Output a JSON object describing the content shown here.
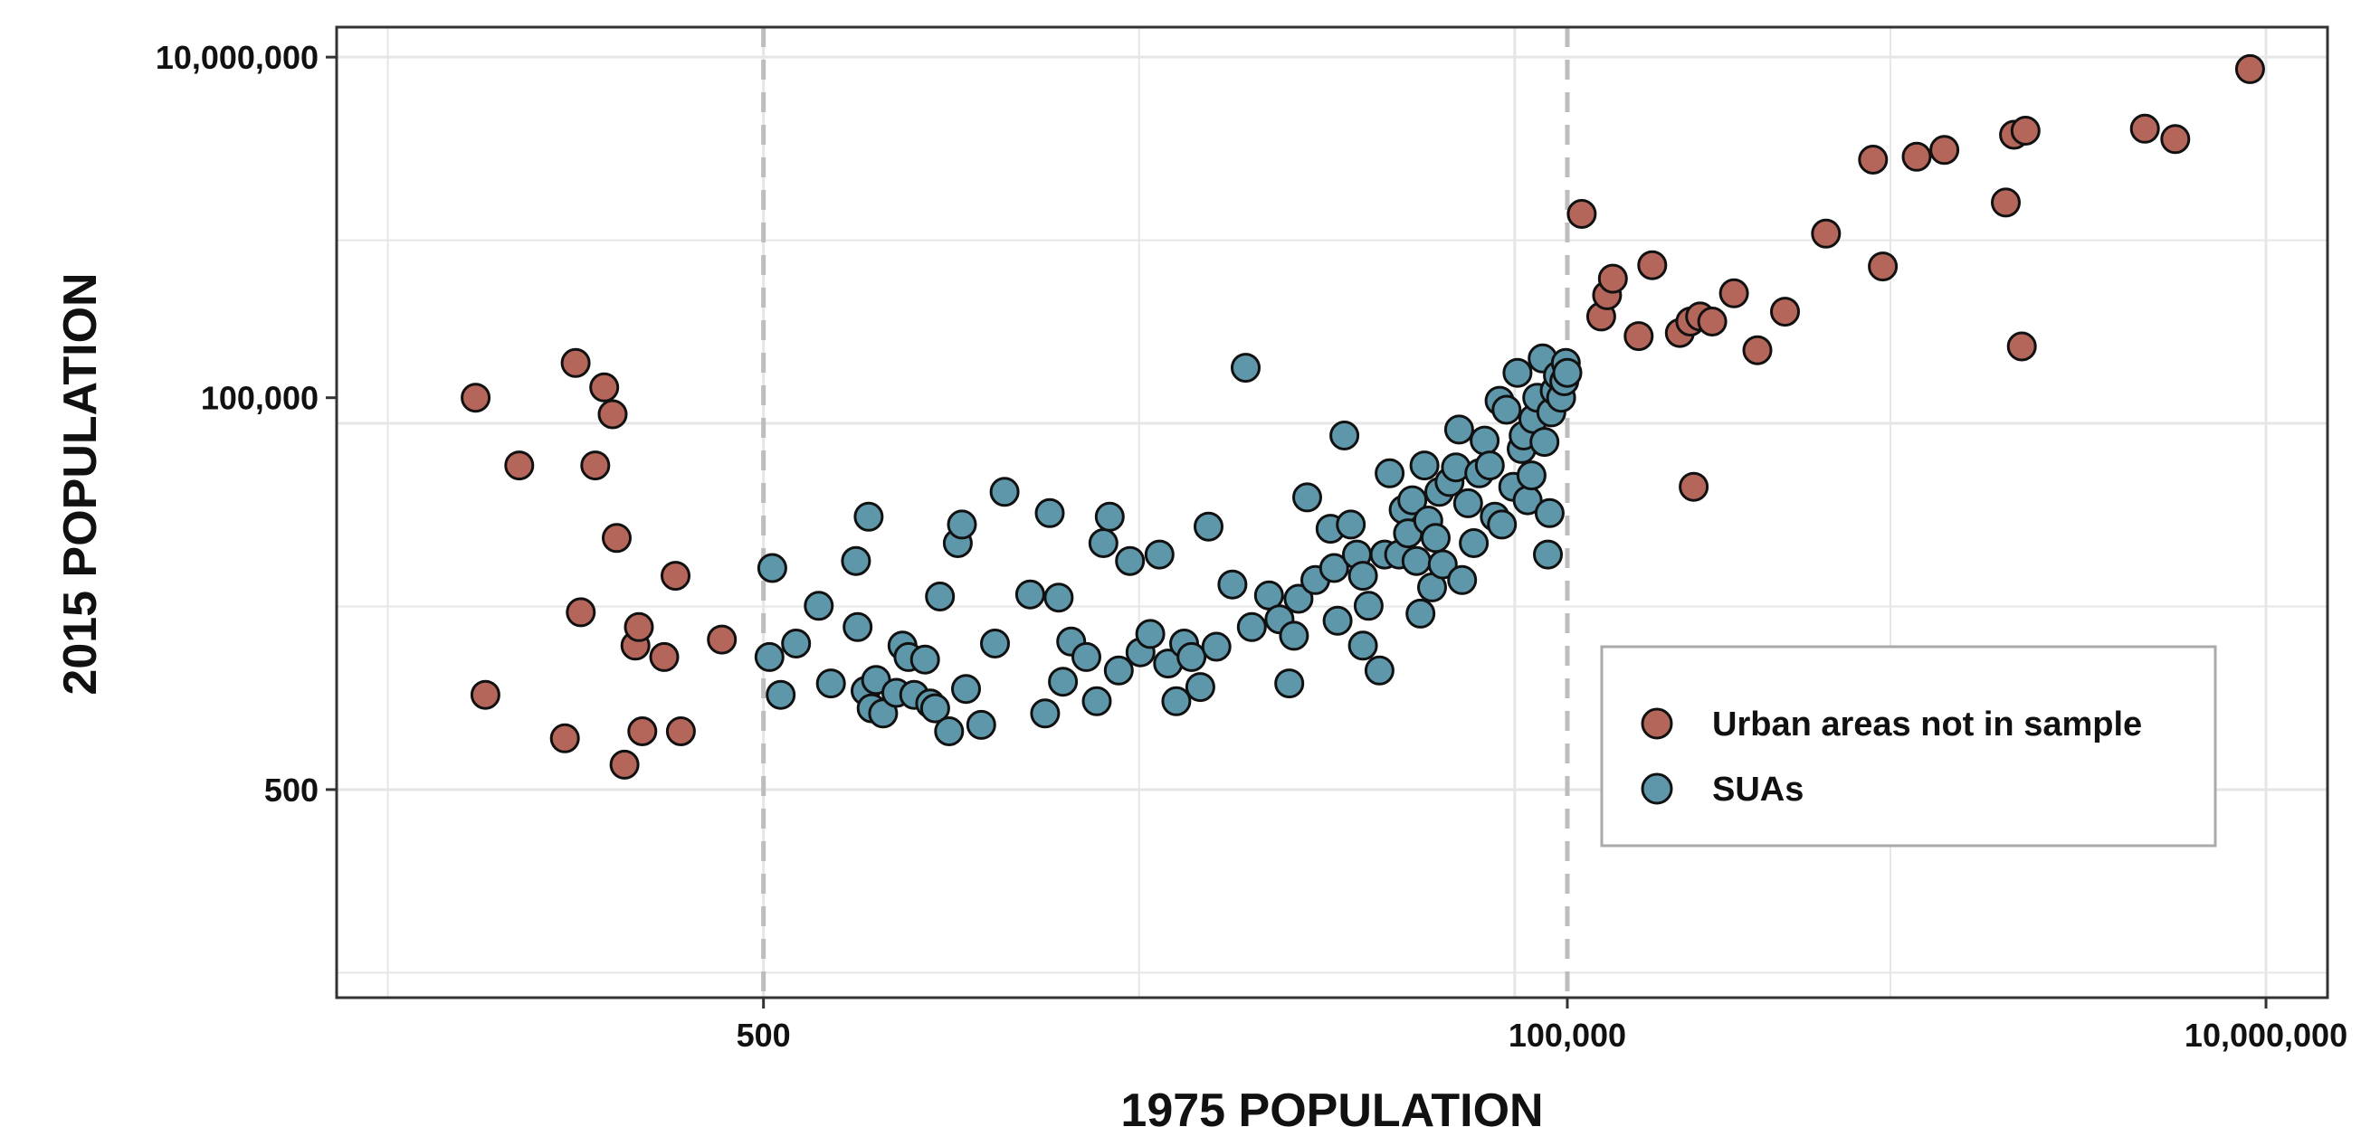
{
  "chart_data": {
    "type": "scatter",
    "title": "",
    "xlabel": "1975 POPULATION",
    "ylabel": "2015 POPULATION",
    "x_scale": "log",
    "y_scale": "log",
    "xlim": [
      30,
      15000000
    ],
    "ylim": [
      30,
      15000000
    ],
    "x_ticks": [
      500,
      100000,
      10000000
    ],
    "x_tick_labels": [
      "500",
      "100,000",
      "10,000,000"
    ],
    "y_ticks": [
      500,
      100000,
      10000000
    ],
    "y_tick_labels": [
      "500",
      "100,000",
      "10,000,000"
    ],
    "x_dashed_reference_lines": [
      500,
      100000
    ],
    "grid": true,
    "legend_position": "bottom-right",
    "colors": {
      "urban": "#b5665a",
      "suas": "#5e97aa"
    },
    "series": [
      {
        "name": "Urban areas not in sample",
        "color": "#b5665a",
        "points": [
          [
            75,
            100000
          ],
          [
            80,
            1800
          ],
          [
            100,
            40000
          ],
          [
            135,
            1000
          ],
          [
            145,
            160000
          ],
          [
            150,
            5500
          ],
          [
            165,
            40000
          ],
          [
            175,
            115000
          ],
          [
            185,
            80000
          ],
          [
            190,
            15000
          ],
          [
            200,
            700
          ],
          [
            215,
            3500
          ],
          [
            220,
            4500
          ],
          [
            225,
            1100
          ],
          [
            260,
            3000
          ],
          [
            280,
            9000
          ],
          [
            290,
            1100
          ],
          [
            380,
            3800
          ],
          [
            110000,
            1200000
          ],
          [
            125000,
            300000
          ],
          [
            130000,
            400000
          ],
          [
            135000,
            500000
          ],
          [
            160000,
            230000
          ],
          [
            175000,
            600000
          ],
          [
            210000,
            240000
          ],
          [
            225000,
            280000
          ],
          [
            230000,
            30000
          ],
          [
            240000,
            300000
          ],
          [
            260000,
            280000
          ],
          [
            300000,
            410000
          ],
          [
            350000,
            190000
          ],
          [
            420000,
            320000
          ],
          [
            550000,
            920000
          ],
          [
            750000,
            2500000
          ],
          [
            800000,
            590000
          ],
          [
            1000000,
            2600000
          ],
          [
            1200000,
            2850000
          ],
          [
            1800000,
            1400000
          ],
          [
            1900000,
            3500000
          ],
          [
            2000000,
            200000
          ],
          [
            2050000,
            3700000
          ],
          [
            4500000,
            3800000
          ],
          [
            5500000,
            3300000
          ],
          [
            9000000,
            8500000
          ]
        ]
      },
      {
        "name": "SUAs",
        "color": "#5e97aa",
        "points": [
          [
            520,
            3000
          ],
          [
            530,
            10000
          ],
          [
            560,
            1800
          ],
          [
            620,
            3600
          ],
          [
            720,
            6000
          ],
          [
            780,
            2100
          ],
          [
            920,
            11000
          ],
          [
            930,
            4500
          ],
          [
            980,
            1900
          ],
          [
            1000,
            20000
          ],
          [
            1020,
            1500
          ],
          [
            1050,
            2200
          ],
          [
            1100,
            1400
          ],
          [
            1200,
            1850
          ],
          [
            1250,
            3500
          ],
          [
            1300,
            3000
          ],
          [
            1350,
            1800
          ],
          [
            1450,
            2900
          ],
          [
            1500,
            1600
          ],
          [
            1550,
            1500
          ],
          [
            1600,
            6800
          ],
          [
            1700,
            1100
          ],
          [
            1800,
            14000
          ],
          [
            1850,
            18000
          ],
          [
            1900,
            1950
          ],
          [
            2100,
            1200
          ],
          [
            2300,
            3600
          ],
          [
            2450,
            28000
          ],
          [
            2900,
            7000
          ],
          [
            3200,
            1400
          ],
          [
            3300,
            21000
          ],
          [
            3500,
            6700
          ],
          [
            3600,
            2150
          ],
          [
            3800,
            3700
          ],
          [
            4200,
            3000
          ],
          [
            4500,
            1650
          ],
          [
            4700,
            14000
          ],
          [
            4900,
            20000
          ],
          [
            5200,
            2500
          ],
          [
            5600,
            11000
          ],
          [
            6000,
            3200
          ],
          [
            6400,
            4100
          ],
          [
            6800,
            12000
          ],
          [
            7200,
            2750
          ],
          [
            7600,
            1650
          ],
          [
            8000,
            3600
          ],
          [
            8400,
            3000
          ],
          [
            8900,
            2000
          ],
          [
            9400,
            17500
          ],
          [
            9900,
            3450
          ],
          [
            11000,
            8000
          ],
          [
            12000,
            150000
          ],
          [
            12500,
            4500
          ],
          [
            14000,
            6900
          ],
          [
            15000,
            5000
          ],
          [
            16000,
            2100
          ],
          [
            16500,
            4000
          ],
          [
            17000,
            6600
          ],
          [
            18000,
            26000
          ],
          [
            19000,
            8500
          ],
          [
            21000,
            17000
          ],
          [
            21500,
            10000
          ],
          [
            22000,
            4900
          ],
          [
            23000,
            60000
          ],
          [
            24000,
            18000
          ],
          [
            25000,
            12000
          ],
          [
            26000,
            9000
          ],
          [
            26000,
            3500
          ],
          [
            27000,
            6000
          ],
          [
            29000,
            2500
          ],
          [
            30000,
            12000
          ],
          [
            31000,
            36000
          ],
          [
            33000,
            12000
          ],
          [
            34000,
            22000
          ],
          [
            35000,
            16000
          ],
          [
            36000,
            25000
          ],
          [
            37000,
            11000
          ],
          [
            38000,
            5400
          ],
          [
            39000,
            40000
          ],
          [
            40000,
            19000
          ],
          [
            41000,
            7700
          ],
          [
            42000,
            15000
          ],
          [
            43000,
            28000
          ],
          [
            44000,
            10500
          ],
          [
            46000,
            32000
          ],
          [
            48000,
            39000
          ],
          [
            49000,
            65000
          ],
          [
            50000,
            8500
          ],
          [
            52000,
            24000
          ],
          [
            54000,
            14000
          ],
          [
            56000,
            36000
          ],
          [
            58000,
            56000
          ],
          [
            60000,
            40000
          ],
          [
            62000,
            20000
          ],
          [
            64000,
            96000
          ],
          [
            65000,
            18000
          ],
          [
            67000,
            85000
          ],
          [
            70000,
            30000
          ],
          [
            72000,
            140000
          ],
          [
            74000,
            50000
          ],
          [
            75000,
            60000
          ],
          [
            77000,
            25000
          ],
          [
            79000,
            35000
          ],
          [
            80000,
            75000
          ],
          [
            82000,
            100000
          ],
          [
            85000,
            170000
          ],
          [
            86000,
            55000
          ],
          [
            88000,
            12000
          ],
          [
            89000,
            21000
          ],
          [
            90000,
            82000
          ],
          [
            92000,
            110000
          ],
          [
            94000,
            135000
          ],
          [
            96000,
            100000
          ],
          [
            98000,
            125000
          ],
          [
            99000,
            160000
          ],
          [
            100000,
            140000
          ]
        ]
      }
    ]
  }
}
